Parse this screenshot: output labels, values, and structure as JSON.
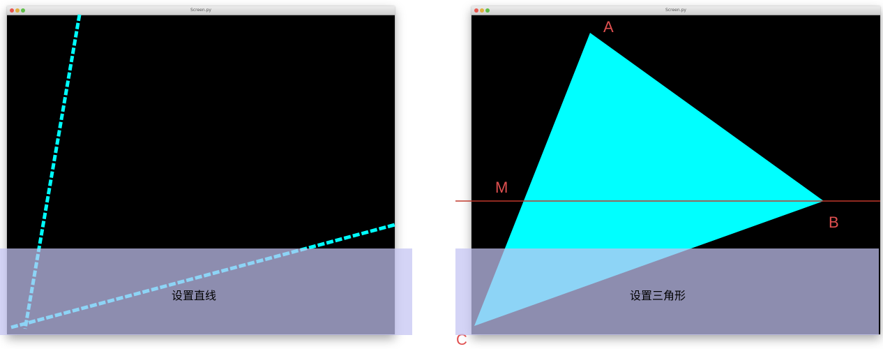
{
  "panels": [
    {
      "window_title": "Screen.py",
      "caption": "设置直线"
    },
    {
      "window_title": "Screen.py",
      "caption": "设置三角形",
      "points": {
        "A": "A",
        "B": "B",
        "C": "C",
        "M": "M"
      }
    }
  ],
  "colors": {
    "shape": "#00ffff",
    "canvas": "#000000",
    "guide_line": "#c0392b",
    "point_label": "#e05050",
    "overlay": "#c4c4f2"
  }
}
